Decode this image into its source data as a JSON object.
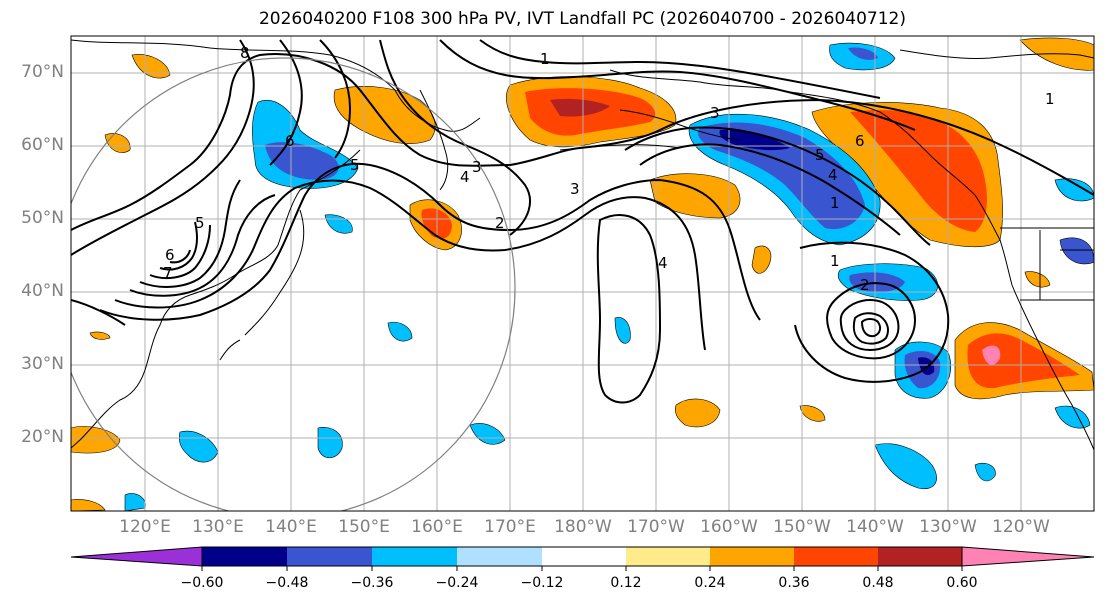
{
  "title": "2026040200 F108 300 hPa PV, IVT Landfall PC (2026040700 - 2026040712)",
  "colors": {
    "ocean": "#ffffff",
    "grid": "#b0b0b0",
    "coast": "#000000",
    "contour": "#000000",
    "ring": "#808080"
  },
  "lat_labels": [
    "70°N",
    "60°N",
    "50°N",
    "40°N",
    "30°N",
    "20°N"
  ],
  "lon_labels": [
    "120°E",
    "130°E",
    "140°E",
    "150°E",
    "160°E",
    "170°E",
    "180°W",
    "170°W",
    "160°W",
    "150°W",
    "140°W",
    "130°W",
    "120°W"
  ],
  "contour_labels": [
    "1",
    "1",
    "1",
    "1",
    "2",
    "2",
    "3",
    "3",
    "3",
    "4",
    "4",
    "4",
    "5",
    "5",
    "5",
    "6",
    "6",
    "6",
    "7",
    "8"
  ],
  "colorbar": {
    "colors": [
      "#9b30d9",
      "#00008b",
      "#3a55d0",
      "#00bfff",
      "#b0e0ff",
      "#ffffff",
      "#ffeb8a",
      "#ffa500",
      "#ff4500",
      "#b22222",
      "#ff82b4"
    ],
    "tick_labels": [
      "−0.60",
      "−0.48",
      "−0.36",
      "−0.24",
      "−0.12",
      "0.12",
      "0.24",
      "0.36",
      "0.48",
      "0.60"
    ]
  }
}
